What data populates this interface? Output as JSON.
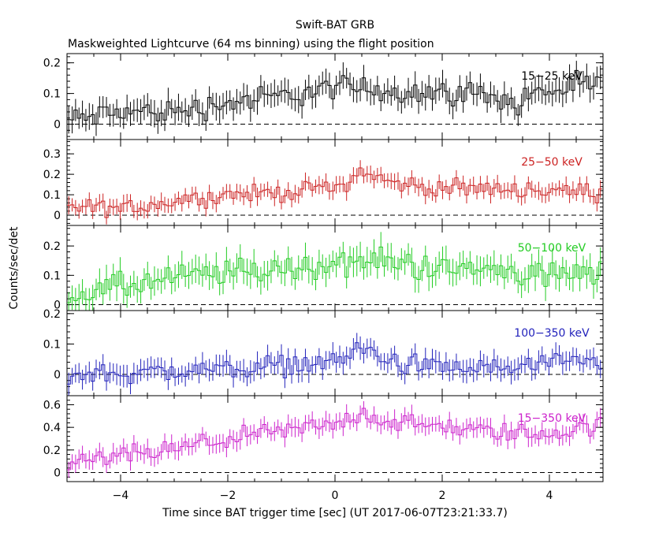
{
  "figure": {
    "title": "Swift-BAT GRB",
    "subtitle": "Maskweighted Lightcurve (64 ms binning) using the flight position",
    "ylabel": "Counts/sec/det",
    "xlabel": "Time since BAT trigger time [sec] (UT 2017-06-07T23:21:33.7)"
  },
  "chart_data": [
    {
      "type": "line",
      "panel": "15-25 keV",
      "label": "15−25 keV",
      "color": "#000000",
      "xlim": [
        -5,
        5
      ],
      "ylim": [
        -0.05,
        0.23
      ],
      "yticks": [
        0,
        0.1,
        0.2
      ],
      "ytick_labels": [
        "0",
        "0.1",
        "0.2"
      ],
      "bin_width": 0.064,
      "profile": [
        [
          -5,
          0.01
        ],
        [
          -4,
          0.04
        ],
        [
          -3,
          0.04
        ],
        [
          -2,
          0.07
        ],
        [
          -1,
          0.09
        ],
        [
          0,
          0.12
        ],
        [
          1,
          0.11
        ],
        [
          2,
          0.1
        ],
        [
          3,
          0.1
        ],
        [
          3.4,
          0.05
        ],
        [
          3.6,
          0.1
        ],
        [
          5,
          0.13
        ]
      ],
      "noise": 0.035
    },
    {
      "type": "line",
      "panel": "25-50 keV",
      "label": "25−50 keV",
      "color": "#cc2222",
      "xlim": [
        -5,
        5
      ],
      "ylim": [
        -0.05,
        0.37
      ],
      "yticks": [
        0,
        0.1,
        0.2,
        0.3
      ],
      "ytick_labels": [
        "0",
        "0.1",
        "0.2",
        "0.3"
      ],
      "bin_width": 0.064,
      "profile": [
        [
          -5,
          0.04
        ],
        [
          -4,
          0.03
        ],
        [
          -3,
          0.07
        ],
        [
          -2,
          0.1
        ],
        [
          -1,
          0.11
        ],
        [
          0,
          0.14
        ],
        [
          0.3,
          0.17
        ],
        [
          0.5,
          0.22
        ],
        [
          1,
          0.16
        ],
        [
          2,
          0.13
        ],
        [
          3,
          0.13
        ],
        [
          5,
          0.11
        ]
      ],
      "noise": 0.035
    },
    {
      "type": "line",
      "panel": "50-100 keV",
      "label": "50−100 keV",
      "color": "#22cc22",
      "xlim": [
        -5,
        5
      ],
      "ylim": [
        -0.02,
        0.27
      ],
      "yticks": [
        0,
        0.1,
        0.2
      ],
      "ytick_labels": [
        "0",
        "0.1",
        "0.2"
      ],
      "bin_width": 0.064,
      "profile": [
        [
          -5,
          0.03
        ],
        [
          -4,
          0.06
        ],
        [
          -3,
          0.09
        ],
        [
          -2,
          0.11
        ],
        [
          -1,
          0.12
        ],
        [
          0,
          0.14
        ],
        [
          1,
          0.15
        ],
        [
          2,
          0.12
        ],
        [
          3,
          0.12
        ],
        [
          4,
          0.1
        ],
        [
          5,
          0.1
        ]
      ],
      "noise": 0.04
    },
    {
      "type": "line",
      "panel": "100-350 keV",
      "label": "100−350 keV",
      "color": "#2222bb",
      "xlim": [
        -5,
        5
      ],
      "ylim": [
        -0.07,
        0.21
      ],
      "yticks": [
        0,
        0.1,
        0.2
      ],
      "ytick_labels": [
        "0",
        "0.1",
        "0.2"
      ],
      "bin_width": 0.064,
      "profile": [
        [
          -5,
          0.0
        ],
        [
          -3,
          0.01
        ],
        [
          -2,
          0.02
        ],
        [
          -1,
          0.03
        ],
        [
          0,
          0.04
        ],
        [
          0.5,
          0.09
        ],
        [
          1,
          0.04
        ],
        [
          2,
          0.02
        ],
        [
          3,
          0.02
        ],
        [
          5,
          0.04
        ]
      ],
      "noise": 0.03
    },
    {
      "type": "line",
      "panel": "15-350 keV",
      "label": "15−350 keV",
      "color": "#cc22cc",
      "xlim": [
        -5,
        5
      ],
      "ylim": [
        -0.08,
        0.68
      ],
      "yticks": [
        0,
        0.2,
        0.4,
        0.6
      ],
      "ytick_labels": [
        "0",
        "0.2",
        "0.4",
        "0.6"
      ],
      "bin_width": 0.064,
      "profile": [
        [
          -5,
          0.07
        ],
        [
          -4,
          0.15
        ],
        [
          -3,
          0.2
        ],
        [
          -2,
          0.3
        ],
        [
          -1,
          0.36
        ],
        [
          0,
          0.43
        ],
        [
          0.5,
          0.52
        ],
        [
          1,
          0.45
        ],
        [
          2,
          0.4
        ],
        [
          3,
          0.36
        ],
        [
          4,
          0.34
        ],
        [
          5,
          0.42
        ]
      ],
      "noise": 0.07
    }
  ],
  "xaxis": {
    "ticks": [
      -4,
      -2,
      0,
      2,
      4
    ],
    "tick_labels": [
      "−4",
      "−2",
      "0",
      "2",
      "4"
    ]
  }
}
